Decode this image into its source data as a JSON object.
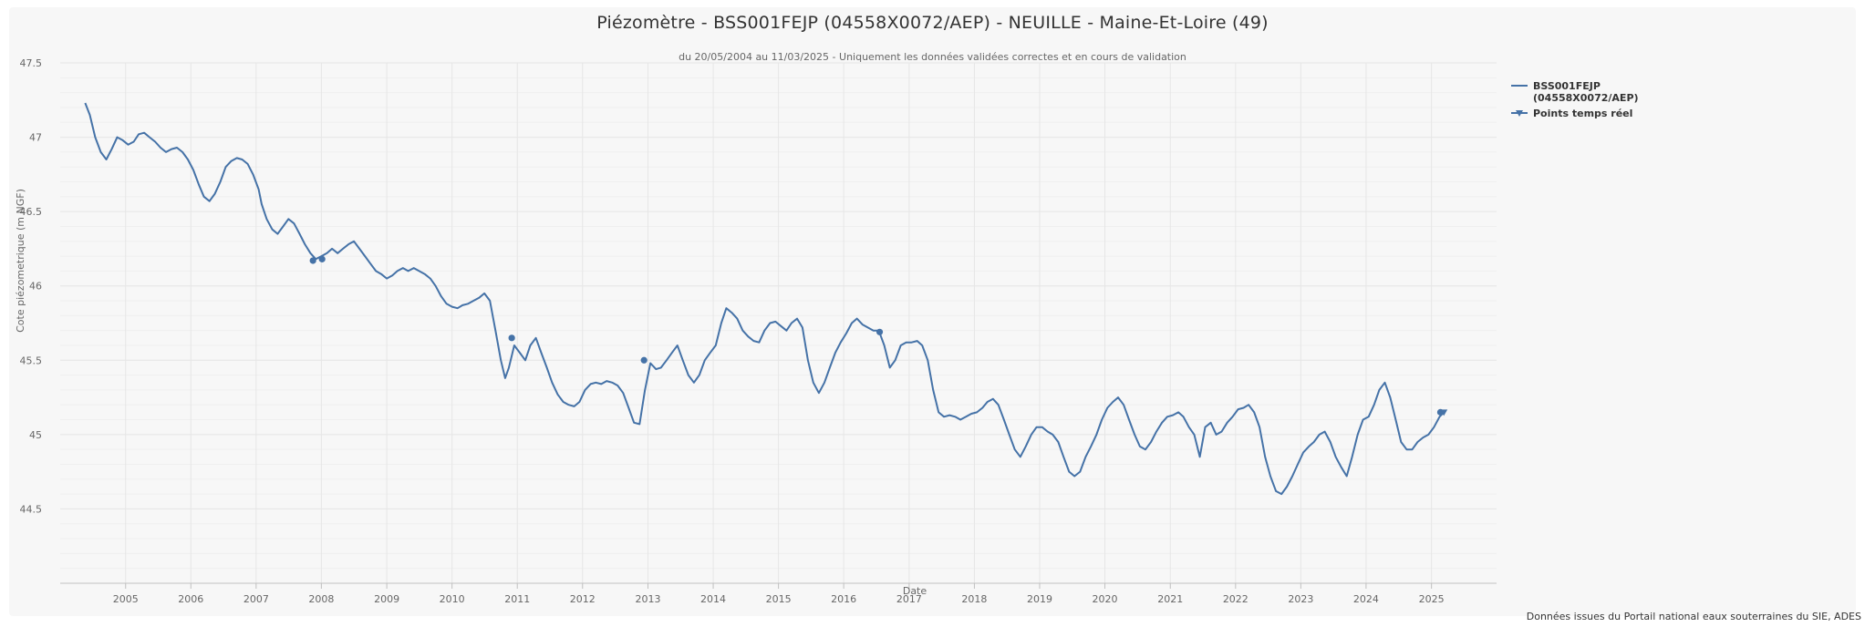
{
  "colors": {
    "series": "#4572a7",
    "plot_bg": "#f7f7f7",
    "grid_major": "#e6e6e6",
    "grid_minor": "#efefef",
    "text": "#333333",
    "axis_text": "#666666"
  },
  "chart_data": {
    "type": "line",
    "title": "Piézomètre - BSS001FEJP (04558X0072/AEP) - NEUILLE - Maine-Et-Loire (49)",
    "subtitle": "du 20/05/2004 au 11/03/2025 - Uniquement les données validées correctes et en cours de validation",
    "xlabel": "Date",
    "ylabel": "Cote piézometrique (m NGF)",
    "xlim": [
      "2004-01-01",
      "2025-12-31"
    ],
    "ylim": [
      44.0,
      47.5
    ],
    "y_ticks": [
      44.5,
      45,
      45.5,
      46,
      46.5,
      47,
      47.5
    ],
    "y_tick_labels": [
      "44.5",
      "45",
      "45.5",
      "46",
      "46.5",
      "47",
      "47.5"
    ],
    "x_ticks": [
      "2005",
      "2006",
      "2007",
      "2008",
      "2009",
      "2010",
      "2011",
      "2012",
      "2013",
      "2014",
      "2015",
      "2016",
      "2017",
      "2018",
      "2019",
      "2020",
      "2021",
      "2022",
      "2023",
      "2024",
      "2025"
    ],
    "grid": true,
    "legend_position": "right-top",
    "series": [
      {
        "name": "BSS001FEJP (04558X0072/AEP)",
        "style": "line",
        "points": [
          [
            "2004-05-20",
            47.23
          ],
          [
            "2004-06-15",
            47.15
          ],
          [
            "2004-07-15",
            47.0
          ],
          [
            "2004-08-15",
            46.9
          ],
          [
            "2004-09-15",
            46.85
          ],
          [
            "2004-10-15",
            46.92
          ],
          [
            "2004-11-15",
            47.0
          ],
          [
            "2004-12-15",
            46.98
          ],
          [
            "2005-01-15",
            46.95
          ],
          [
            "2005-02-15",
            46.97
          ],
          [
            "2005-03-15",
            47.02
          ],
          [
            "2005-04-15",
            47.03
          ],
          [
            "2005-05-15",
            47.0
          ],
          [
            "2005-06-15",
            46.97
          ],
          [
            "2005-07-15",
            46.93
          ],
          [
            "2005-08-15",
            46.9
          ],
          [
            "2005-09-15",
            46.92
          ],
          [
            "2005-10-15",
            46.93
          ],
          [
            "2005-11-15",
            46.9
          ],
          [
            "2005-12-15",
            46.85
          ],
          [
            "2006-01-15",
            46.78
          ],
          [
            "2006-02-15",
            46.68
          ],
          [
            "2006-03-15",
            46.6
          ],
          [
            "2006-04-15",
            46.57
          ],
          [
            "2006-05-15",
            46.62
          ],
          [
            "2006-06-15",
            46.7
          ],
          [
            "2006-07-15",
            46.8
          ],
          [
            "2006-08-15",
            46.84
          ],
          [
            "2006-09-15",
            46.86
          ],
          [
            "2006-10-15",
            46.85
          ],
          [
            "2006-11-15",
            46.82
          ],
          [
            "2006-12-15",
            46.75
          ],
          [
            "2007-01-15",
            46.65
          ],
          [
            "2007-02-01",
            46.55
          ],
          [
            "2007-03-01",
            46.45
          ],
          [
            "2007-04-01",
            46.38
          ],
          [
            "2007-05-01",
            46.35
          ],
          [
            "2007-06-01",
            46.4
          ],
          [
            "2007-07-01",
            46.45
          ],
          [
            "2007-08-01",
            46.42
          ],
          [
            "2007-09-01",
            46.35
          ],
          [
            "2007-10-01",
            46.28
          ],
          [
            "2007-11-01",
            46.22
          ],
          [
            "2007-12-01",
            46.18
          ],
          [
            "2008-01-01",
            46.2
          ],
          [
            "2008-02-01",
            46.22
          ],
          [
            "2008-03-01",
            46.25
          ],
          [
            "2008-04-01",
            46.22
          ],
          [
            "2008-05-01",
            46.25
          ],
          [
            "2008-06-01",
            46.28
          ],
          [
            "2008-07-01",
            46.3
          ],
          [
            "2008-08-01",
            46.25
          ],
          [
            "2008-09-01",
            46.2
          ],
          [
            "2008-10-01",
            46.15
          ],
          [
            "2008-11-01",
            46.1
          ],
          [
            "2008-12-01",
            46.08
          ],
          [
            "2009-01-01",
            46.05
          ],
          [
            "2009-02-01",
            46.07
          ],
          [
            "2009-03-01",
            46.1
          ],
          [
            "2009-04-01",
            46.12
          ],
          [
            "2009-05-01",
            46.1
          ],
          [
            "2009-06-01",
            46.12
          ],
          [
            "2009-07-01",
            46.1
          ],
          [
            "2009-08-01",
            46.08
          ],
          [
            "2009-09-01",
            46.05
          ],
          [
            "2009-10-01",
            46.0
          ],
          [
            "2009-11-01",
            45.93
          ],
          [
            "2009-12-01",
            45.88
          ],
          [
            "2010-01-01",
            45.86
          ],
          [
            "2010-02-01",
            45.85
          ],
          [
            "2010-03-01",
            45.87
          ],
          [
            "2010-04-01",
            45.88
          ],
          [
            "2010-05-01",
            45.9
          ],
          [
            "2010-06-01",
            45.92
          ],
          [
            "2010-07-01",
            45.95
          ],
          [
            "2010-08-01",
            45.9
          ],
          [
            "2010-09-01",
            45.7
          ],
          [
            "2010-10-01",
            45.5
          ],
          [
            "2010-10-25",
            45.38
          ],
          [
            "2010-11-15",
            45.45
          ],
          [
            "2010-12-15",
            45.6
          ],
          [
            "2011-01-15",
            45.55
          ],
          [
            "2011-02-15",
            45.5
          ],
          [
            "2011-03-15",
            45.6
          ],
          [
            "2011-04-15",
            45.65
          ],
          [
            "2011-05-15",
            45.55
          ],
          [
            "2011-06-15",
            45.45
          ],
          [
            "2011-07-15",
            45.35
          ],
          [
            "2011-08-15",
            45.27
          ],
          [
            "2011-09-15",
            45.22
          ],
          [
            "2011-10-15",
            45.2
          ],
          [
            "2011-11-15",
            45.19
          ],
          [
            "2011-12-15",
            45.22
          ],
          [
            "2012-01-15",
            45.3
          ],
          [
            "2012-02-15",
            45.34
          ],
          [
            "2012-03-15",
            45.35
          ],
          [
            "2012-04-15",
            45.34
          ],
          [
            "2012-05-15",
            45.36
          ],
          [
            "2012-06-15",
            45.35
          ],
          [
            "2012-07-15",
            45.33
          ],
          [
            "2012-08-15",
            45.28
          ],
          [
            "2012-09-15",
            45.18
          ],
          [
            "2012-10-15",
            45.08
          ],
          [
            "2012-11-15",
            45.07
          ],
          [
            "2012-12-15",
            45.3
          ],
          [
            "2013-01-15",
            45.48
          ],
          [
            "2013-02-15",
            45.44
          ],
          [
            "2013-03-15",
            45.45
          ],
          [
            "2013-04-15",
            45.5
          ],
          [
            "2013-05-15",
            45.55
          ],
          [
            "2013-06-15",
            45.6
          ],
          [
            "2013-07-15",
            45.5
          ],
          [
            "2013-08-15",
            45.4
          ],
          [
            "2013-09-15",
            45.35
          ],
          [
            "2013-10-15",
            45.4
          ],
          [
            "2013-11-15",
            45.5
          ],
          [
            "2013-12-15",
            45.55
          ],
          [
            "2014-01-15",
            45.6
          ],
          [
            "2014-02-15",
            45.75
          ],
          [
            "2014-03-15",
            45.85
          ],
          [
            "2014-04-15",
            45.82
          ],
          [
            "2014-05-15",
            45.78
          ],
          [
            "2014-06-15",
            45.7
          ],
          [
            "2014-07-15",
            45.66
          ],
          [
            "2014-08-15",
            45.63
          ],
          [
            "2014-09-15",
            45.62
          ],
          [
            "2014-10-15",
            45.7
          ],
          [
            "2014-11-15",
            45.75
          ],
          [
            "2014-12-15",
            45.76
          ],
          [
            "2015-01-15",
            45.73
          ],
          [
            "2015-02-15",
            45.7
          ],
          [
            "2015-03-15",
            45.75
          ],
          [
            "2015-04-15",
            45.78
          ],
          [
            "2015-05-15",
            45.72
          ],
          [
            "2015-06-15",
            45.5
          ],
          [
            "2015-07-15",
            45.35
          ],
          [
            "2015-08-15",
            45.28
          ],
          [
            "2015-09-15",
            45.35
          ],
          [
            "2015-10-15",
            45.45
          ],
          [
            "2015-11-15",
            45.55
          ],
          [
            "2015-12-15",
            45.62
          ],
          [
            "2016-01-15",
            45.68
          ],
          [
            "2016-02-15",
            45.75
          ],
          [
            "2016-03-15",
            45.78
          ],
          [
            "2016-04-15",
            45.74
          ],
          [
            "2016-05-15",
            45.72
          ],
          [
            "2016-06-15",
            45.7
          ],
          [
            "2016-07-15",
            45.7
          ],
          [
            "2016-08-15",
            45.6
          ],
          [
            "2016-09-15",
            45.45
          ],
          [
            "2016-10-15",
            45.5
          ],
          [
            "2016-11-15",
            45.6
          ],
          [
            "2016-12-15",
            45.62
          ],
          [
            "2017-01-15",
            45.62
          ],
          [
            "2017-02-15",
            45.63
          ],
          [
            "2017-03-15",
            45.6
          ],
          [
            "2017-04-15",
            45.5
          ],
          [
            "2017-05-15",
            45.3
          ],
          [
            "2017-06-15",
            45.15
          ],
          [
            "2017-07-15",
            45.12
          ],
          [
            "2017-08-15",
            45.13
          ],
          [
            "2017-09-15",
            45.12
          ],
          [
            "2017-10-15",
            45.1
          ],
          [
            "2017-11-15",
            45.12
          ],
          [
            "2017-12-15",
            45.14
          ],
          [
            "2018-01-15",
            45.15
          ],
          [
            "2018-02-15",
            45.18
          ],
          [
            "2018-03-15",
            45.22
          ],
          [
            "2018-04-15",
            45.24
          ],
          [
            "2018-05-15",
            45.2
          ],
          [
            "2018-06-15",
            45.1
          ],
          [
            "2018-07-15",
            45.0
          ],
          [
            "2018-08-15",
            44.9
          ],
          [
            "2018-09-15",
            44.85
          ],
          [
            "2018-10-15",
            44.92
          ],
          [
            "2018-11-15",
            45.0
          ],
          [
            "2018-12-15",
            45.05
          ],
          [
            "2019-01-15",
            45.05
          ],
          [
            "2019-02-15",
            45.02
          ],
          [
            "2019-03-15",
            45.0
          ],
          [
            "2019-04-15",
            44.95
          ],
          [
            "2019-05-15",
            44.85
          ],
          [
            "2019-06-15",
            44.75
          ],
          [
            "2019-07-15",
            44.72
          ],
          [
            "2019-08-15",
            44.75
          ],
          [
            "2019-09-15",
            44.85
          ],
          [
            "2019-10-15",
            44.92
          ],
          [
            "2019-11-15",
            45.0
          ],
          [
            "2019-12-15",
            45.1
          ],
          [
            "2020-01-15",
            45.18
          ],
          [
            "2020-02-15",
            45.22
          ],
          [
            "2020-03-15",
            45.25
          ],
          [
            "2020-04-15",
            45.2
          ],
          [
            "2020-05-15",
            45.1
          ],
          [
            "2020-06-15",
            45.0
          ],
          [
            "2020-07-15",
            44.92
          ],
          [
            "2020-08-15",
            44.9
          ],
          [
            "2020-09-15",
            44.95
          ],
          [
            "2020-10-15",
            45.02
          ],
          [
            "2020-11-15",
            45.08
          ],
          [
            "2020-12-15",
            45.12
          ],
          [
            "2021-01-15",
            45.13
          ],
          [
            "2021-02-15",
            45.15
          ],
          [
            "2021-03-15",
            45.12
          ],
          [
            "2021-04-15",
            45.05
          ],
          [
            "2021-05-15",
            45.0
          ],
          [
            "2021-06-15",
            44.85
          ],
          [
            "2021-07-15",
            45.05
          ],
          [
            "2021-08-15",
            45.08
          ],
          [
            "2021-09-15",
            45.0
          ],
          [
            "2021-10-15",
            45.02
          ],
          [
            "2021-11-15",
            45.08
          ],
          [
            "2021-12-15",
            45.12
          ],
          [
            "2022-01-15",
            45.17
          ],
          [
            "2022-02-15",
            45.18
          ],
          [
            "2022-03-15",
            45.2
          ],
          [
            "2022-04-15",
            45.15
          ],
          [
            "2022-05-15",
            45.05
          ],
          [
            "2022-06-15",
            44.85
          ],
          [
            "2022-07-15",
            44.72
          ],
          [
            "2022-08-15",
            44.62
          ],
          [
            "2022-09-15",
            44.6
          ],
          [
            "2022-10-15",
            44.65
          ],
          [
            "2022-11-15",
            44.72
          ],
          [
            "2022-12-15",
            44.8
          ],
          [
            "2023-01-15",
            44.88
          ],
          [
            "2023-02-15",
            44.92
          ],
          [
            "2023-03-15",
            44.95
          ],
          [
            "2023-04-15",
            45.0
          ],
          [
            "2023-05-15",
            45.02
          ],
          [
            "2023-06-15",
            44.95
          ],
          [
            "2023-07-15",
            44.85
          ],
          [
            "2023-08-15",
            44.78
          ],
          [
            "2023-09-15",
            44.72
          ],
          [
            "2023-10-15",
            44.85
          ],
          [
            "2023-11-15",
            45.0
          ],
          [
            "2023-12-15",
            45.1
          ],
          [
            "2024-01-15",
            45.12
          ],
          [
            "2024-02-15",
            45.2
          ],
          [
            "2024-03-15",
            45.3
          ],
          [
            "2024-04-15",
            45.35
          ],
          [
            "2024-05-15",
            45.25
          ],
          [
            "2024-06-15",
            45.1
          ],
          [
            "2024-07-15",
            44.95
          ],
          [
            "2024-08-15",
            44.9
          ],
          [
            "2024-09-15",
            44.9
          ],
          [
            "2024-10-15",
            44.95
          ],
          [
            "2024-11-15",
            44.98
          ],
          [
            "2024-12-15",
            45.0
          ],
          [
            "2025-01-15",
            45.05
          ],
          [
            "2025-02-15",
            45.12
          ],
          [
            "2025-03-11",
            45.15
          ]
        ]
      },
      {
        "name": "Points temps réel",
        "style": "markers",
        "points": [
          [
            "2007-11-15",
            46.17
          ],
          [
            "2008-01-05",
            46.18
          ],
          [
            "2010-12-01",
            45.65
          ],
          [
            "2012-12-10",
            45.5
          ],
          [
            "2016-07-20",
            45.69
          ],
          [
            "2025-02-20",
            45.15
          ],
          [
            "2025-03-11",
            45.15
          ]
        ]
      }
    ],
    "credits": "Données issues du Portail national eaux souterraines du SIE, ADES"
  }
}
